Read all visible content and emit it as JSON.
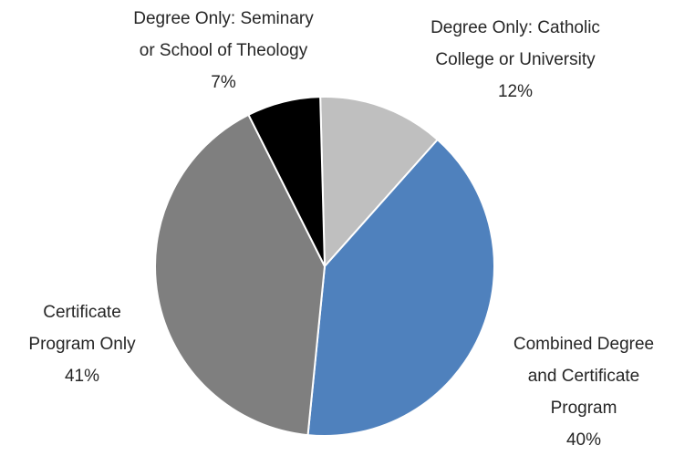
{
  "chart_data": {
    "type": "pie",
    "categories": [
      "Degree Only: Catholic\nCollege or University",
      "Combined Degree\nand Certificate\nProgram",
      "Certificate\nProgram Only",
      "Degree Only: Seminary\nor School of Theology"
    ],
    "values": [
      12,
      40,
      41,
      7
    ],
    "value_labels": [
      "12%",
      "40%",
      "41%",
      "7%"
    ],
    "colors": [
      "#bfbfbf",
      "#4f81bd",
      "#7f7f7f",
      "#000000"
    ]
  }
}
